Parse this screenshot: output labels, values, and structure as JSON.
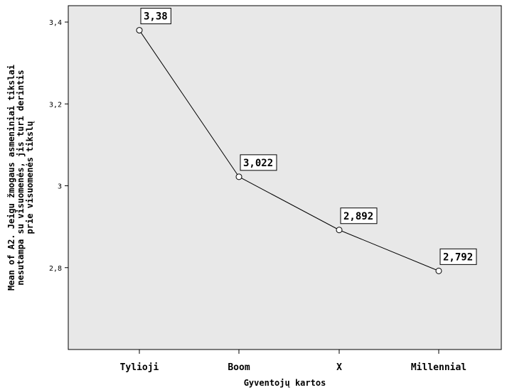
{
  "chart_data": {
    "type": "line",
    "title": "",
    "xlabel": "Gyventojų kartos",
    "ylabel": [
      "Mean of A2. Jeigu žmogaus asmeniniai tikslai",
      "nesutampa su visuomenės, jis turi derintis",
      "prie visuomenės tikslų"
    ],
    "categories": [
      "Tylioji",
      "Boom",
      "X",
      "Millennial"
    ],
    "values": [
      3.38,
      3.022,
      2.892,
      2.792
    ],
    "data_labels": [
      "3,38",
      "3,022",
      "2,892",
      "2,792"
    ],
    "yticks": [
      2.8,
      3.0,
      3.2,
      3.4
    ],
    "ytick_labels": [
      "2,8",
      "3",
      "3,2",
      "3,4"
    ],
    "ylim": [
      2.6,
      3.44
    ],
    "grid": false,
    "colors": {
      "plot_background": "#e8e8e8",
      "line": "#000000",
      "marker_fill": "#ffffff"
    }
  }
}
